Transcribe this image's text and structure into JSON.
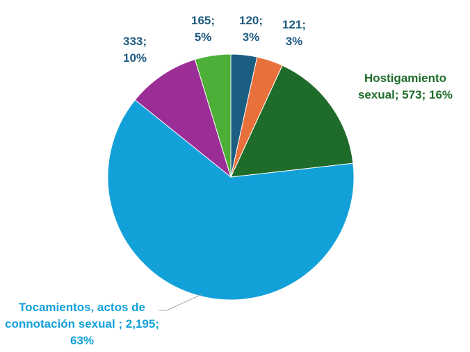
{
  "chart_data": {
    "type": "pie",
    "values": [
      120,
      121,
      573,
      2195,
      333,
      165
    ],
    "value_labels": [
      "120; 3%",
      "121; 3%",
      "Hostigamiento sexual; 573; 16%",
      "Tocamientos, actos de connotación sexual ; 2,195; 63%",
      "333; 10%",
      "165; 5%"
    ],
    "colors": [
      "#1b5e82",
      "#e8703a",
      "#1e6b2a",
      "#12a0d9",
      "#9b2d96",
      "#4caf38"
    ]
  }
}
